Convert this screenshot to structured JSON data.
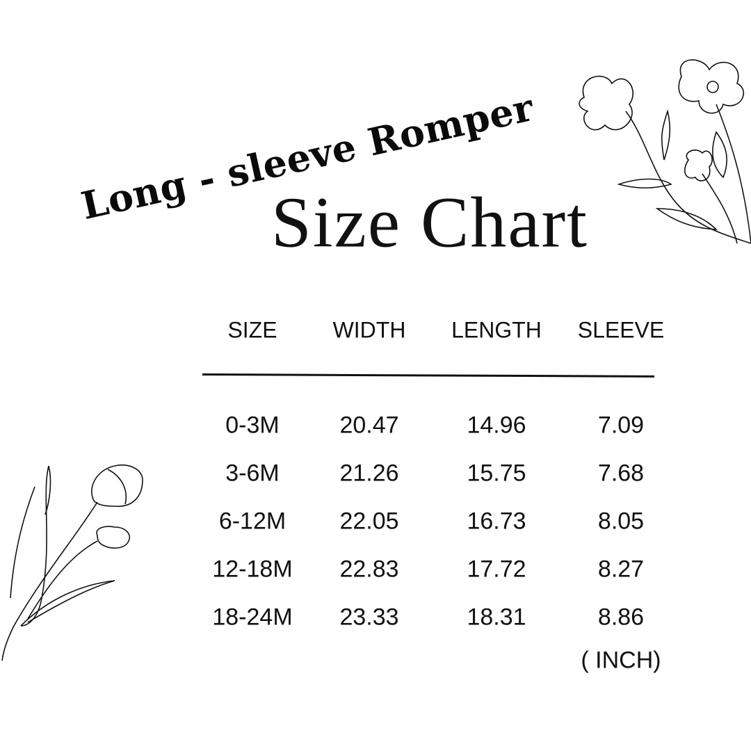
{
  "subtitle": "Long - sleeve Romper",
  "title": "Size Chart",
  "table": {
    "headers": [
      "SIZE",
      "WIDTH",
      "LENGTH",
      "SLEEVE"
    ],
    "rows": [
      [
        "0-3M",
        "20.47",
        "14.96",
        "7.09"
      ],
      [
        "3-6M",
        "21.26",
        "15.75",
        "7.68"
      ],
      [
        "6-12M",
        "22.05",
        "16.73",
        "8.05"
      ],
      [
        "12-18M",
        "22.83",
        "17.72",
        "8.27"
      ],
      [
        "18-24M",
        "23.33",
        "18.31",
        "8.86"
      ]
    ],
    "unit": "( INCH)"
  },
  "decorations": [
    "flower-line-art-top-right",
    "tulip-line-art-bottom-left"
  ]
}
